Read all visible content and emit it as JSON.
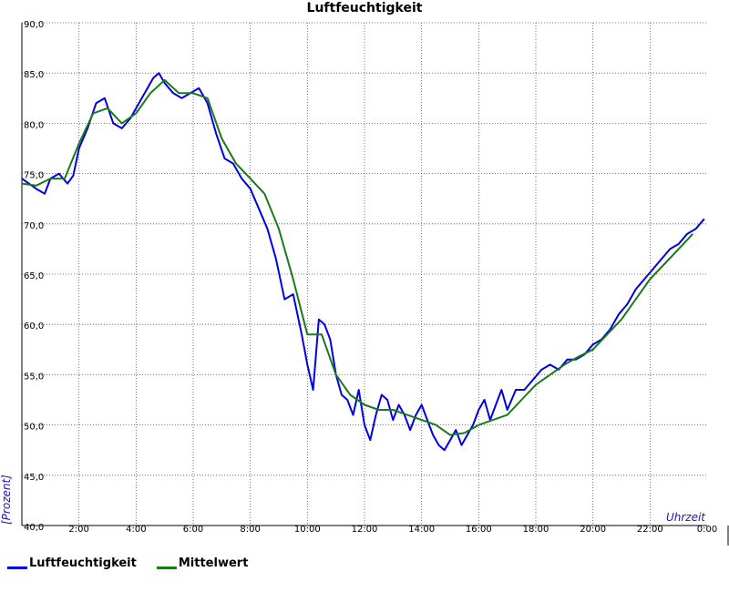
{
  "chart_data": {
    "type": "line",
    "title": "Luftfeuchtigkeit",
    "xlabel": "Uhrzeit",
    "ylabel": "[Prozent]",
    "ylim": [
      40,
      90
    ],
    "xlim": [
      0,
      24
    ],
    "grid": true,
    "legend_position": "bottom-left",
    "y_ticks": [
      "40,0",
      "45,0",
      "50,0",
      "55,0",
      "60,0",
      "65,0",
      "70,0",
      "75,0",
      "80,0",
      "85,0",
      "90,0"
    ],
    "x_ticks": [
      "2:00",
      "4:00",
      "6:00",
      "8:00",
      "10:00",
      "12:00",
      "14:00",
      "16:00",
      "18:00",
      "20:00",
      "22:00",
      "0:00"
    ],
    "series": [
      {
        "name": "Luftfeuchtigkeit",
        "color": "#0000e6",
        "x": [
          0,
          0.5,
          0.8,
          1.0,
          1.3,
          1.6,
          1.8,
          2.0,
          2.3,
          2.6,
          2.9,
          3.2,
          3.5,
          3.8,
          4.1,
          4.4,
          4.6,
          4.8,
          5.0,
          5.3,
          5.6,
          5.9,
          6.2,
          6.5,
          6.8,
          7.1,
          7.4,
          7.7,
          8.0,
          8.3,
          8.6,
          8.9,
          9.2,
          9.5,
          9.8,
          10.0,
          10.2,
          10.4,
          10.6,
          10.8,
          11.0,
          11.2,
          11.4,
          11.6,
          11.8,
          12.0,
          12.2,
          12.4,
          12.6,
          12.8,
          13.0,
          13.2,
          13.4,
          13.6,
          13.8,
          14.0,
          14.2,
          14.4,
          14.6,
          14.8,
          15.0,
          15.2,
          15.4,
          15.6,
          15.8,
          16.0,
          16.2,
          16.4,
          16.6,
          16.8,
          17.0,
          17.3,
          17.6,
          17.9,
          18.2,
          18.5,
          18.8,
          19.1,
          19.4,
          19.7,
          20.0,
          20.3,
          20.6,
          20.9,
          21.2,
          21.5,
          21.8,
          22.1,
          22.4,
          22.7,
          23.0,
          23.3,
          23.6,
          23.9
        ],
        "values": [
          74.5,
          73.5,
          73.0,
          74.5,
          75.0,
          74.0,
          74.8,
          77.5,
          79.5,
          82.0,
          82.5,
          80.0,
          79.5,
          80.5,
          82.0,
          83.5,
          84.5,
          85.0,
          84.0,
          83.0,
          82.5,
          83.0,
          83.5,
          82.0,
          79.0,
          76.5,
          76.0,
          74.5,
          73.5,
          71.5,
          69.5,
          66.5,
          62.5,
          63.0,
          59.0,
          56.0,
          53.5,
          60.5,
          60.0,
          58.5,
          55.0,
          53.0,
          52.5,
          51.0,
          53.5,
          50.0,
          48.5,
          51.0,
          53.0,
          52.5,
          50.5,
          52.0,
          51.0,
          49.5,
          51.0,
          52.0,
          50.5,
          49.0,
          48.0,
          47.5,
          48.5,
          49.5,
          48.0,
          49.0,
          50.0,
          51.5,
          52.5,
          50.5,
          52.0,
          53.5,
          51.5,
          53.5,
          53.5,
          54.5,
          55.5,
          56.0,
          55.5,
          56.5,
          56.5,
          57.0,
          58.0,
          58.5,
          59.5,
          61.0,
          62.0,
          63.5,
          64.5,
          65.5,
          66.5,
          67.5,
          68.0,
          69.0,
          69.5,
          70.5
        ]
      },
      {
        "name": "Mittelwert",
        "color": "#1a7a1a",
        "x": [
          0,
          0.5,
          1.0,
          1.5,
          2.0,
          2.5,
          3.0,
          3.5,
          4.0,
          4.5,
          5.0,
          5.5,
          6.0,
          6.5,
          7.0,
          7.5,
          8.0,
          8.5,
          9.0,
          9.5,
          10.0,
          10.5,
          11.0,
          11.5,
          12.0,
          12.5,
          13.0,
          13.5,
          14.0,
          14.5,
          15.0,
          15.5,
          16.0,
          16.5,
          17.0,
          17.5,
          18.0,
          18.5,
          19.0,
          19.5,
          20.0,
          20.5,
          21.0,
          21.5,
          22.0,
          22.5,
          23.0,
          23.5
        ],
        "values": [
          74.0,
          73.8,
          74.5,
          74.5,
          78.0,
          81.0,
          81.5,
          80.0,
          81.0,
          83.0,
          84.3,
          83.0,
          83.0,
          82.5,
          78.5,
          76.0,
          74.5,
          73.0,
          69.5,
          64.5,
          59.0,
          59.0,
          55.0,
          53.0,
          52.0,
          51.5,
          51.5,
          51.0,
          50.5,
          50.0,
          49.0,
          49.2,
          50.0,
          50.5,
          51.0,
          52.5,
          54.0,
          55.0,
          56.0,
          56.8,
          57.5,
          59.0,
          60.5,
          62.5,
          64.5,
          66.0,
          67.5,
          69.0
        ]
      }
    ]
  }
}
